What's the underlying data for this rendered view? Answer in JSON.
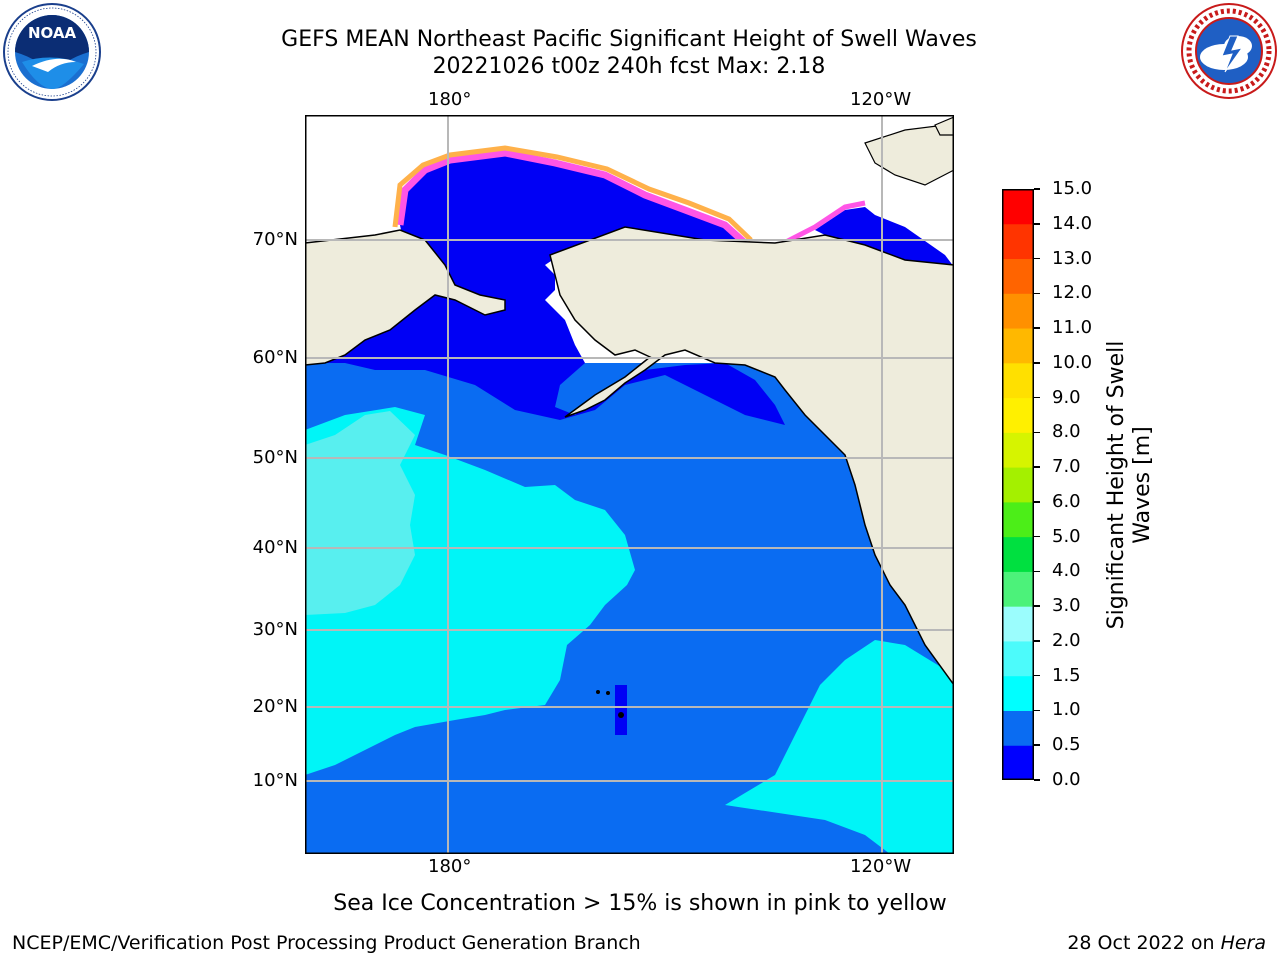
{
  "header": {
    "title_line1": "GEFS MEAN Northeast Pacific Significant Height of Swell Waves",
    "title_line2": "20221026 t00z 240h fcst   Max: 2.18"
  },
  "logos": {
    "left": {
      "icon": "noaa-logo",
      "text": "NOAA",
      "ring_text": "NATIONAL OCEANIC AND ATMOSPHERIC ADMINISTRATION · U.S. DEPARTMENT OF COMMERCE"
    },
    "right": {
      "icon": "nws-logo",
      "ring_text": "NATIONAL WEATHER SERVICE"
    }
  },
  "map": {
    "lon_labels_top": [
      "180°",
      "120°W"
    ],
    "lon_labels_bottom": [
      "180°",
      "120°W"
    ],
    "lat_labels": [
      "70°N",
      "60°N",
      "50°N",
      "40°N",
      "30°N",
      "20°N",
      "10°N"
    ],
    "colors": {
      "land": "#eeecdc",
      "ocean_base": "#0a6cf2",
      "ocean_low": "#0000f5",
      "swell_mid": "#00f5f7",
      "swell_high": "#4af0f0",
      "ice_pink": "#ff55e6",
      "ice_orange": "#ffb14a",
      "grid": "#b8b8b8"
    }
  },
  "colorbar": {
    "label": "Significant Height of Swell Waves [m]",
    "label_line1": "Significant Height of Swell",
    "label_line2": "Waves [m]",
    "ticks": [
      "15.0",
      "14.0",
      "13.0",
      "12.0",
      "11.0",
      "10.0",
      "9.0",
      "8.0",
      "7.0",
      "6.0",
      "5.0",
      "4.0",
      "3.0",
      "2.0",
      "1.5",
      "1.0",
      "0.5",
      "0.0"
    ],
    "colors_bottom_to_top": [
      "#0000ff",
      "#0a6cf2",
      "#00ffff",
      "#4cfbfb",
      "#9bfdfd",
      "#4cf27a",
      "#00e040",
      "#4cee18",
      "#a4f000",
      "#d6f400",
      "#fff000",
      "#ffe000",
      "#ffb800",
      "#ff9000",
      "#ff6400",
      "#ff3400",
      "#ff0000"
    ]
  },
  "annotation": "Sea Ice Concentration > 15% is shown in pink to yellow",
  "footer": {
    "left": "NCEP/EMC/Verification Post Processing Product Generation Branch",
    "right_prefix": "28 Oct 2022 on ",
    "right_host": "Hera"
  }
}
